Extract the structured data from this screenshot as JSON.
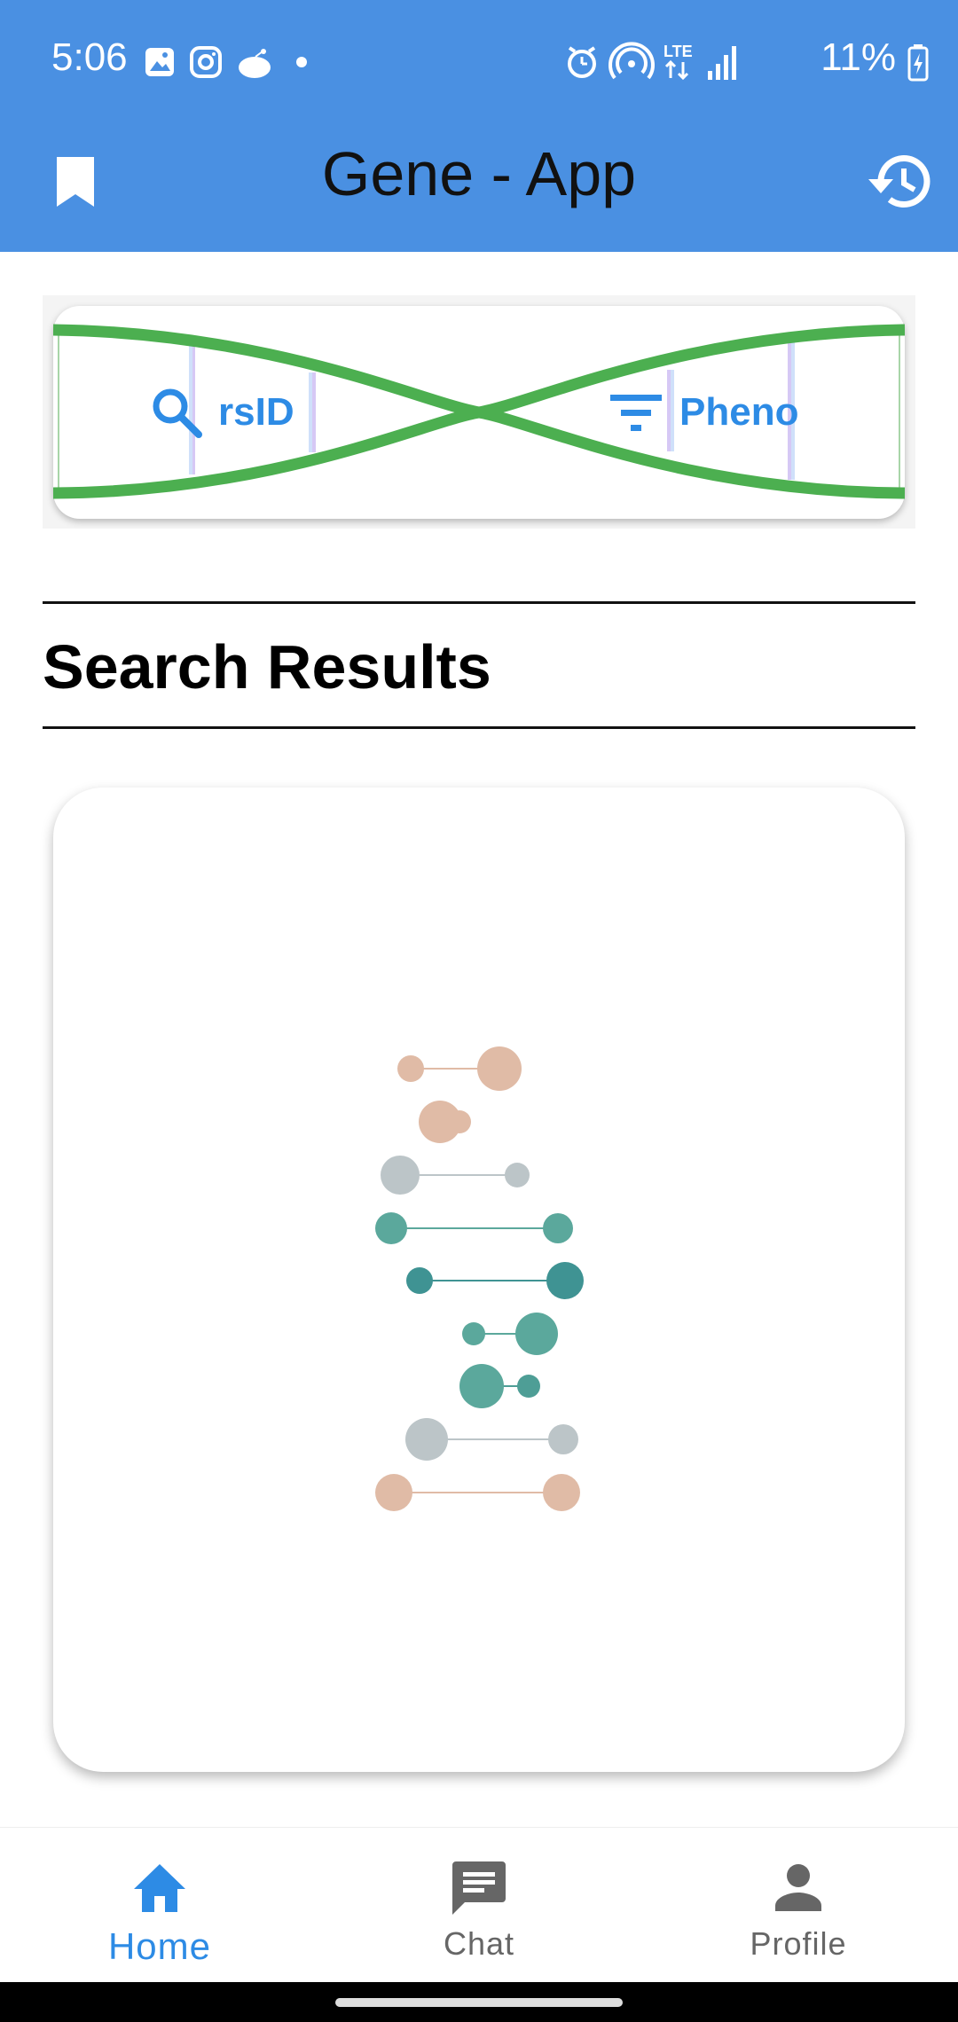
{
  "status_bar": {
    "time": "5:06",
    "battery": "11%",
    "left_icons": [
      "gallery-icon",
      "instagram-icon",
      "reddit-icon",
      "dot-icon"
    ],
    "right_icons": [
      "alarm-icon",
      "hotspot-icon",
      "lte-icon",
      "signal-icon",
      "battery-charging-icon"
    ]
  },
  "app_bar": {
    "title": "Gene - App",
    "background": "#4A90E2",
    "left_icon": "bookmark-icon",
    "right_icon": "history-icon"
  },
  "search_banner": {
    "rsid_label": "rsID",
    "pheno_label": "Pheno",
    "rsid_icon": "search-icon",
    "pheno_icon": "filter-icon",
    "accent": "#2D8BE5",
    "strand_color": "#4CAF50"
  },
  "section": {
    "title": "Search Results"
  },
  "bottom_nav": {
    "items": [
      {
        "label": "Home",
        "icon": "home-icon",
        "active": true
      },
      {
        "label": "Chat",
        "icon": "chat-icon",
        "active": false
      },
      {
        "label": "Profile",
        "icon": "profile-icon",
        "active": false
      }
    ],
    "active_color": "#2D8BE5",
    "inactive_color": "#666666"
  }
}
